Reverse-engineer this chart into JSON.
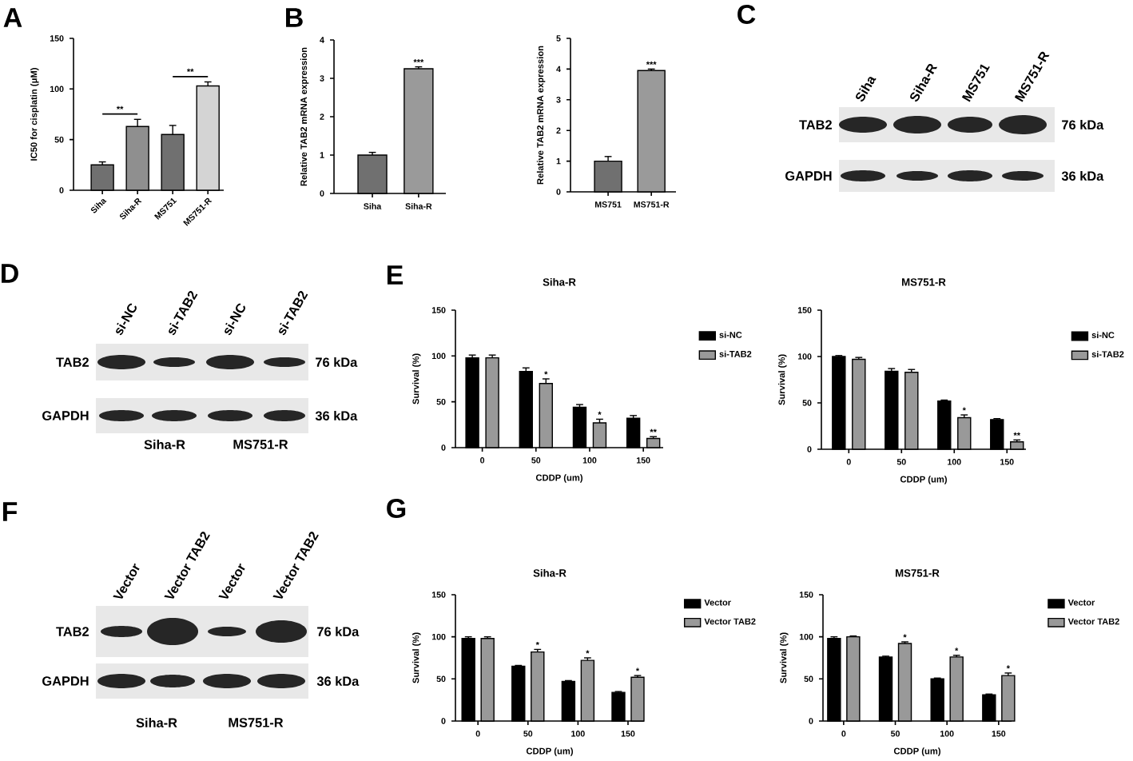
{
  "chart_data": [
    {
      "type": "bar",
      "ylabel": "IC50 for cisplatin (μM)",
      "categories": [
        "Siha",
        "Siha-R",
        "MS751",
        "MS751-R"
      ],
      "values": [
        25,
        63,
        55,
        103
      ],
      "errors": [
        [
          25,
          28
        ],
        [
          63,
          70
        ],
        [
          55,
          64
        ],
        [
          103,
          107
        ]
      ],
      "colors": [
        "#707070",
        "#8f8f8f",
        "#707070",
        "#d4d4d4"
      ],
      "ylim": [
        0,
        150
      ],
      "yticks": [
        0,
        50,
        100,
        150
      ],
      "annotations": [
        "A",
        "**",
        "**"
      ]
    },
    {
      "type": "bar",
      "ylabel": "Relative TAB2 mRNA expression",
      "categories": [
        "Siha",
        "Siha-R"
      ],
      "values": [
        1.0,
        3.25
      ],
      "errors": [
        [
          1.0,
          1.07
        ],
        [
          3.25,
          3.3
        ]
      ],
      "colors": [
        "#707070",
        "#9a9a9a"
      ],
      "value_labels": [
        null,
        "***"
      ],
      "ylim": [
        0,
        4
      ],
      "yticks": [
        0,
        1,
        2,
        3,
        4
      ],
      "annotations": [
        "B"
      ]
    },
    {
      "type": "bar",
      "ylabel": "Relative TAB2 mRNA expression",
      "categories": [
        "MS751",
        "MS751-R"
      ],
      "values": [
        1.0,
        3.95
      ],
      "errors": [
        [
          1.0,
          1.15
        ],
        [
          3.95,
          4.0
        ]
      ],
      "colors": [
        "#707070",
        "#9a9a9a"
      ],
      "value_labels": [
        null,
        "***"
      ],
      "ylim": [
        0,
        5
      ],
      "yticks": [
        0,
        1,
        2,
        3,
        4,
        5
      ]
    },
    {
      "type": "other",
      "categories": [
        "Siha",
        "Siha-R",
        "MS751",
        "MS751-R"
      ],
      "y_categories": [
        "TAB2",
        "GAPDH"
      ],
      "y2_categories": [
        "76 kDa",
        "36 kDa"
      ],
      "annotations": [
        "C"
      ]
    },
    {
      "type": "other",
      "categories": [
        "si-NC",
        "si-TAB2",
        "si-NC",
        "si-TAB2"
      ],
      "y_categories": [
        "TAB2",
        "GAPDH"
      ],
      "y2_categories": [
        "76 kDa",
        "36 kDa"
      ],
      "annotations": [
        "D",
        "Siha-R",
        "MS751-R"
      ]
    },
    {
      "type": "bar",
      "title": "Siha-R",
      "xlabel": "CDDP (um)",
      "ylabel": "Survival (%)",
      "categories": [
        "0",
        "50",
        "100",
        "150"
      ],
      "series": [
        {
          "name": "si-NC",
          "color": "#000000",
          "values": [
            98,
            83,
            44,
            32
          ],
          "errors": [
            [
              98,
              101
            ],
            [
              83,
              87
            ],
            [
              44,
              47
            ],
            [
              32,
              35
            ]
          ]
        },
        {
          "name": "si-TAB2",
          "color": "#999999",
          "values": [
            98,
            70,
            27,
            10
          ],
          "errors": [
            [
              98,
              101
            ],
            [
              70,
              75
            ],
            [
              27,
              31
            ],
            [
              10,
              12
            ]
          ],
          "value_labels": [
            null,
            "*",
            "*",
            "**"
          ]
        }
      ],
      "ylim": [
        0,
        150
      ],
      "yticks": [
        0,
        50,
        100,
        150
      ],
      "legend": "right",
      "annotations": [
        "E"
      ]
    },
    {
      "type": "bar",
      "title": "MS751-R",
      "xlabel": "CDDP (um)",
      "ylabel": "Survival (%)",
      "categories": [
        "0",
        "50",
        "100",
        "150"
      ],
      "series": [
        {
          "name": "si-NC",
          "color": "#000000",
          "values": [
            100,
            84,
            52,
            32
          ],
          "errors": [
            [
              100,
              101
            ],
            [
              84,
              87
            ],
            [
              52,
              53
            ],
            [
              32,
              33
            ]
          ]
        },
        {
          "name": "si-TAB2",
          "color": "#999999",
          "values": [
            97,
            83,
            34,
            8
          ],
          "errors": [
            [
              97,
              99
            ],
            [
              83,
              86
            ],
            [
              34,
              37
            ],
            [
              8,
              10
            ]
          ],
          "value_labels": [
            null,
            null,
            "*",
            "**"
          ]
        }
      ],
      "ylim": [
        0,
        150
      ],
      "yticks": [
        0,
        50,
        100,
        150
      ],
      "legend": "right"
    },
    {
      "type": "other",
      "categories": [
        "Vector",
        "Vector TAB2",
        "Vector",
        "Vector TAB2"
      ],
      "y_categories": [
        "TAB2",
        "GAPDH"
      ],
      "y2_categories": [
        "76 kDa",
        "36 kDa"
      ],
      "annotations": [
        "F",
        "Siha-R",
        "MS751-R"
      ]
    },
    {
      "type": "bar",
      "title": "Siha-R",
      "xlabel": "CDDP (um)",
      "ylabel": "Survival (%)",
      "categories": [
        "0",
        "50",
        "100",
        "150"
      ],
      "series": [
        {
          "name": "Vector",
          "color": "#000000",
          "values": [
            98,
            65,
            47,
            34
          ],
          "errors": [
            [
              98,
              100
            ],
            [
              65,
              66
            ],
            [
              47,
              48
            ],
            [
              34,
              35
            ]
          ]
        },
        {
          "name": "Vector TAB2",
          "color": "#999999",
          "values": [
            98,
            82,
            72,
            52
          ],
          "errors": [
            [
              98,
              100
            ],
            [
              82,
              85
            ],
            [
              72,
              75
            ],
            [
              52,
              54
            ]
          ],
          "value_labels": [
            null,
            "*",
            "*",
            "*"
          ]
        }
      ],
      "ylim": [
        0,
        150
      ],
      "yticks": [
        0,
        50,
        100,
        150
      ],
      "legend": "right",
      "annotations": [
        "G"
      ]
    },
    {
      "type": "bar",
      "title": "MS751-R",
      "xlabel": "CDDP (um)",
      "ylabel": "Survival (%)",
      "categories": [
        "0",
        "50",
        "100",
        "150"
      ],
      "series": [
        {
          "name": "Vector",
          "color": "#000000",
          "values": [
            98,
            76,
            50,
            31
          ],
          "errors": [
            [
              98,
              100
            ],
            [
              76,
              77
            ],
            [
              50,
              51
            ],
            [
              31,
              32
            ]
          ]
        },
        {
          "name": "Vector TAB2",
          "color": "#999999",
          "values": [
            100,
            92,
            76,
            54
          ],
          "errors": [
            [
              100,
              101
            ],
            [
              92,
              94
            ],
            [
              76,
              78
            ],
            [
              54,
              57
            ]
          ],
          "value_labels": [
            null,
            "*",
            "*",
            "*"
          ]
        }
      ],
      "ylim": [
        0,
        150
      ],
      "yticks": [
        0,
        50,
        100,
        150
      ],
      "legend": "right"
    }
  ]
}
